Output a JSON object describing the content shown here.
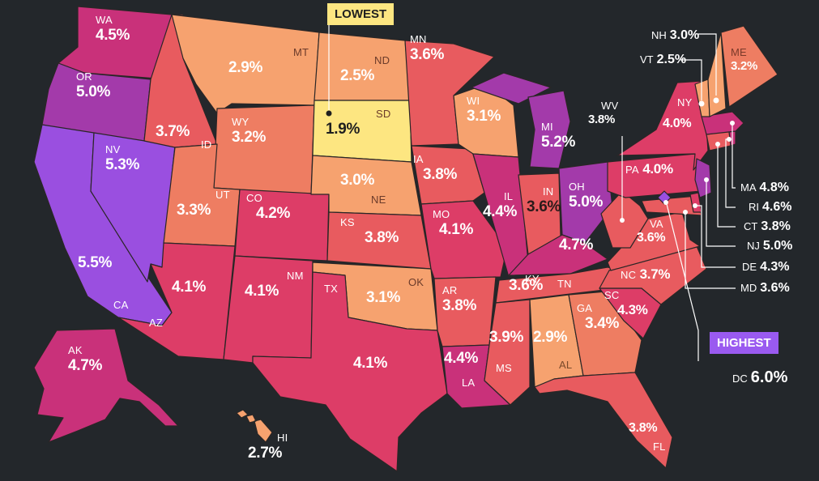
{
  "map": {
    "lowest_tag": "LOWEST",
    "highest_tag": "HIGHEST",
    "states": {
      "WA": "4.5%",
      "OR": "5.0%",
      "CA": "5.5%",
      "NV": "5.3%",
      "ID": "3.7%",
      "MT": "2.9%",
      "WY": "3.2%",
      "UT": "3.3%",
      "AZ": "4.1%",
      "CO": "4.2%",
      "NM": "4.1%",
      "ND": "2.5%",
      "SD": "1.9%",
      "NE": "3.0%",
      "KS": "3.8%",
      "OK": "3.1%",
      "TX": "4.1%",
      "MN": "3.6%",
      "IA": "3.8%",
      "MO": "4.1%",
      "AR": "3.8%",
      "LA": "4.4%",
      "WI": "3.1%",
      "IL": "4.4%",
      "MI": "5.2%",
      "IN": "3.6%",
      "OH": "5.0%",
      "KY": "4.7%",
      "TN": "3.6%",
      "MS": "3.9%",
      "AL": "2.9%",
      "GA": "3.4%",
      "FL": "3.8%",
      "SC": "4.3%",
      "NC": "3.7%",
      "VA": "3.6%",
      "WV": "3.8%",
      "PA": "4.0%",
      "NY": "4.0%",
      "ME": "3.2%",
      "VT": "2.5%",
      "NH": "3.0%",
      "MA": "4.8%",
      "RI": "4.6%",
      "CT": "3.8%",
      "NJ": "5.0%",
      "DE": "4.3%",
      "MD": "3.6%",
      "DC": "6.0%",
      "AK": "4.7%",
      "HI": "2.7%"
    },
    "colors": {
      "lowest": "#fde681",
      "low": "#f6a26f",
      "mid_low": "#ee7d62",
      "mid": "#e85b5f",
      "mid_high": "#dd3d67",
      "high": "#c9317a",
      "higher": "#a33aaa",
      "highest": "#9a4fe0",
      "background": "#23272b"
    }
  }
}
